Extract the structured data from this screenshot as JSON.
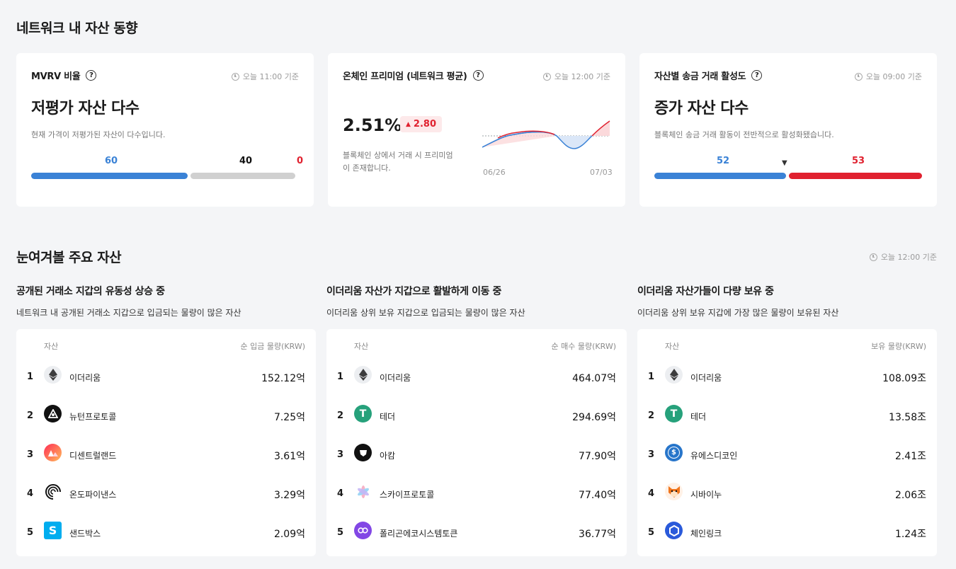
{
  "network": {
    "title": "네트워크 내 자산 동향",
    "mvrv": {
      "title": "MVRV 비율",
      "help": "?",
      "time": "오늘 11:00 기준",
      "headline": "저평가 자산 다수",
      "desc": "현재 가격이 저평가된 자산이 다수입니다.",
      "values": {
        "blue": "60",
        "gray": "40",
        "red": "0"
      },
      "shares": {
        "blue": 0.6,
        "gray": 0.4,
        "red": 0.0
      }
    },
    "premium": {
      "title": "온체인 프리미엄 (네트워크 평균)",
      "help": "?",
      "time": "오늘 12:00 기준",
      "value": "2.51%",
      "change": "2.80",
      "change_arrow": "▲",
      "desc_line1": "블록체인 상에서 거래 시 프리미엄",
      "desc_line2": "이 존재합니다.",
      "date_start": "06/26",
      "date_end": "07/03"
    },
    "activity": {
      "title": "자산별 송금 거래 활성도",
      "help": "?",
      "time": "오늘 09:00 기준",
      "headline": "증가 자산 다수",
      "desc": "블록체인 송금 거래 활동이 전반적으로 활성화됐습니다.",
      "values": {
        "blue": "52",
        "red": "53"
      },
      "marker": "▼"
    }
  },
  "notable": {
    "title": "눈여겨볼 주요 자산",
    "time": "오늘 12:00 기준",
    "panels": [
      {
        "title": "공개된 거래소 지갑의 유동성 상승 중",
        "desc": "네트워크 내 공개된 거래소 지갑으로 입금되는 물량이 많은 자산",
        "col_asset": "자산",
        "col_value": "순 입금 물량(KRW)",
        "rows": [
          {
            "rank": "1",
            "name": "이더리움",
            "value": "152.12억"
          },
          {
            "rank": "2",
            "name": "뉴턴프로토콜",
            "value": "7.25억"
          },
          {
            "rank": "3",
            "name": "디센트럴랜드",
            "value": "3.61억"
          },
          {
            "rank": "4",
            "name": "온도파이낸스",
            "value": "3.29억"
          },
          {
            "rank": "5",
            "name": "샌드박스",
            "value": "2.09억"
          }
        ]
      },
      {
        "title": "이더리움 자산가 지갑으로 활발하게 이동 중",
        "desc": "이더리움 상위 보유 지갑으로 입금되는 물량이 많은 자산",
        "col_asset": "자산",
        "col_value": "순 매수 물량(KRW)",
        "rows": [
          {
            "rank": "1",
            "name": "이더리움",
            "value": "464.07억"
          },
          {
            "rank": "2",
            "name": "테더",
            "value": "294.69억"
          },
          {
            "rank": "3",
            "name": "아캄",
            "value": "77.90억"
          },
          {
            "rank": "4",
            "name": "스카이프로토콜",
            "value": "77.40억"
          },
          {
            "rank": "5",
            "name": "폴리곤에코시스템토큰",
            "value": "36.77억"
          }
        ]
      },
      {
        "title": "이더리움 자산가들이 다량 보유 중",
        "desc": "이더리움 상위 보유 지갑에 가장 많은 물량이 보유된 자산",
        "col_asset": "자산",
        "col_value": "보유 물량(KRW)",
        "rows": [
          {
            "rank": "1",
            "name": "이더리움",
            "value": "108.09조"
          },
          {
            "rank": "2",
            "name": "테더",
            "value": "13.58조"
          },
          {
            "rank": "3",
            "name": "유에스디코인",
            "value": "2.41조"
          },
          {
            "rank": "4",
            "name": "시바이누",
            "value": "2.06조"
          },
          {
            "rank": "5",
            "name": "체인링크",
            "value": "1.24조"
          }
        ]
      }
    ]
  },
  "colors": {
    "blue": "#3a82d6",
    "red": "#e0212f",
    "gray": "#d0d0d0",
    "tether": "#26a17b"
  },
  "icons": [
    "help-icon",
    "clock-icon",
    "ethereum-icon",
    "newton-icon",
    "decentraland-icon",
    "ondo-icon",
    "sandbox-icon",
    "tether-icon",
    "arkham-icon",
    "sky-icon",
    "polygon-icon",
    "usdc-icon",
    "shiba-icon",
    "chainlink-icon"
  ]
}
